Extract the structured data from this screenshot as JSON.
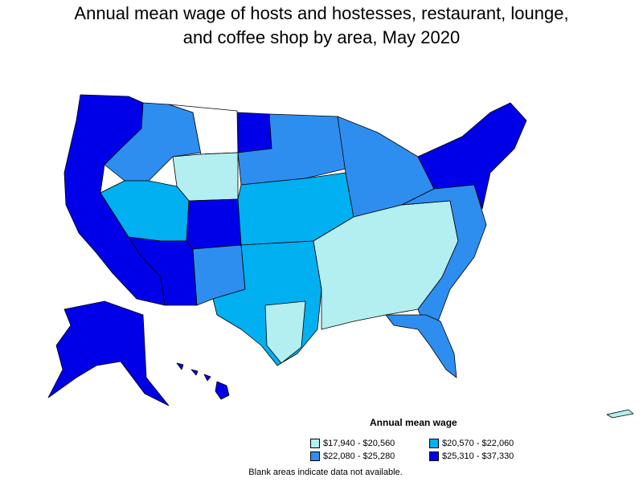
{
  "title_line1": "Annual mean wage of hosts and hostesses, restaurant, lounge,",
  "title_line2": "and coffee shop by area, May 2020",
  "legend": {
    "title": "Annual mean wage",
    "items": [
      {
        "label": "$17,940 - $20,560",
        "color": "#b3eef0"
      },
      {
        "label": "$20,570 - $22,060",
        "color": "#00b0f0"
      },
      {
        "label": "$22,080 - $25,280",
        "color": "#2e8ef0"
      },
      {
        "label": "$25,310 - $37,330",
        "color": "#0000e8"
      }
    ]
  },
  "note": "Blank areas indicate data not available."
}
